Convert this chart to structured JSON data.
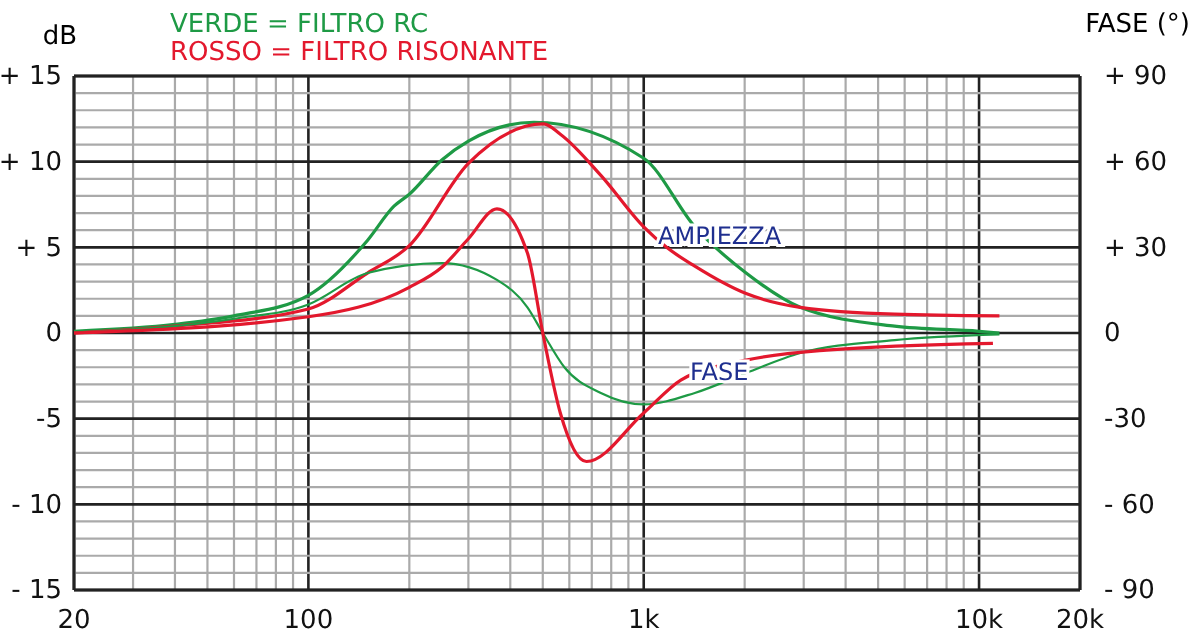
{
  "chart_data": {
    "type": "line",
    "title": "VERDE = FILTRO RC",
    "subtitle": "ROSSO = FILTRO RISONANTE",
    "ylabel": "dB",
    "y2label": "FASE (°)",
    "log": "x",
    "grid": true,
    "marker": "none",
    "line_style": "solid",
    "xlim": [
      20,
      20000
    ],
    "xticks": [
      {
        "value": 20,
        "label": "20"
      },
      {
        "value": 30,
        "label": null
      },
      {
        "value": 40,
        "label": null
      },
      {
        "value": 50,
        "label": null
      },
      {
        "value": 60,
        "label": null
      },
      {
        "value": 70,
        "label": null
      },
      {
        "value": 80,
        "label": null
      },
      {
        "value": 90,
        "label": null
      },
      {
        "value": 100,
        "label": "100"
      },
      {
        "value": 200,
        "label": null
      },
      {
        "value": 300,
        "label": null
      },
      {
        "value": 400,
        "label": null
      },
      {
        "value": 500,
        "label": null
      },
      {
        "value": 600,
        "label": null
      },
      {
        "value": 700,
        "label": null
      },
      {
        "value": 800,
        "label": null
      },
      {
        "value": 900,
        "label": null
      },
      {
        "value": 1000,
        "label": "1k"
      },
      {
        "value": 2000,
        "label": null
      },
      {
        "value": 3000,
        "label": null
      },
      {
        "value": 4000,
        "label": null
      },
      {
        "value": 5000,
        "label": null
      },
      {
        "value": 6000,
        "label": null
      },
      {
        "value": 7000,
        "label": null
      },
      {
        "value": 8000,
        "label": null
      },
      {
        "value": 9000,
        "label": null
      },
      {
        "value": 10000,
        "label": "10k"
      },
      {
        "value": 20000,
        "label": "20k"
      }
    ],
    "ylim": [
      -15,
      15
    ],
    "yticks": [
      {
        "value": -15,
        "label": "- 15"
      },
      {
        "value": -14,
        "label": null
      },
      {
        "value": -13,
        "label": null
      },
      {
        "value": -12,
        "label": null
      },
      {
        "value": -11,
        "label": null
      },
      {
        "value": -10,
        "label": "- 10"
      },
      {
        "value": -9,
        "label": null
      },
      {
        "value": -8,
        "label": null
      },
      {
        "value": -7,
        "label": null
      },
      {
        "value": -6,
        "label": null
      },
      {
        "value": -5,
        "label": "-5"
      },
      {
        "value": -4,
        "label": null
      },
      {
        "value": -3,
        "label": null
      },
      {
        "value": -2,
        "label": null
      },
      {
        "value": -1,
        "label": null
      },
      0,
      {
        "value": 1,
        "label": null
      },
      {
        "value": 2,
        "label": null
      },
      {
        "value": 3,
        "label": null
      },
      {
        "value": 4,
        "label": null
      },
      {
        "value": 5,
        "label": "+ 5"
      },
      {
        "value": 6,
        "label": null
      },
      {
        "value": 7,
        "label": null
      },
      {
        "value": 8,
        "label": null
      },
      {
        "value": 9,
        "label": null
      },
      {
        "value": 10,
        "label": "+ 10"
      },
      {
        "value": 11,
        "label": null
      },
      {
        "value": 12,
        "label": null
      },
      {
        "value": 13,
        "label": null
      },
      {
        "value": 14,
        "label": null
      },
      {
        "value": 15,
        "label": "+ 15"
      }
    ],
    "y2lim": [
      -90,
      90
    ],
    "y2ticks": [
      {
        "value": -90,
        "label": "- 90"
      },
      {
        "value": -60,
        "label": "- 60"
      },
      {
        "value": -30,
        "label": "-30"
      },
      0,
      {
        "value": 30,
        "label": "+ 30"
      },
      {
        "value": 60,
        "label": "+ 60"
      },
      {
        "value": 90,
        "label": "+ 90"
      }
    ],
    "annotations": [
      "AMPIEZZA",
      "FASE"
    ],
    "series": [
      {
        "color": "#1e9a45",
        "x": [
          20,
          40,
          60,
          100,
          150,
          180,
          200,
          250,
          300,
          470,
          1000,
          1420,
          2020,
          2930,
          5600,
          10000,
          11500
        ],
        "values": [
          0.1,
          0.5,
          1.0,
          2.2,
          5.4,
          7.4,
          8.1,
          10.1,
          11.2,
          12.3,
          10.2,
          6.2,
          3.5,
          1.5,
          0.4,
          0.1,
          0
        ]
      },
      {
        "color": "#e3182d",
        "x": [
          20,
          40,
          100,
          150,
          200,
          300,
          503,
          564,
          745,
          1000,
          1170,
          1420,
          2020,
          2930,
          5600,
          11500
        ],
        "values": [
          0,
          0.4,
          1.4,
          3.5,
          5.1,
          9.9,
          12.2,
          11.6,
          9.2,
          6.2,
          5.0,
          3.9,
          2.3,
          1.5,
          1.1,
          1.0
        ]
      },
      {
        "color": "#1e9a45",
        "axis": "y2",
        "x": [
          20,
          60,
          100,
          150,
          250,
          365,
          450,
          500,
          580,
          745,
          1000,
          1420,
          2020,
          2930,
          5600,
          11500
        ],
        "values": [
          0,
          5,
          10,
          21,
          24.5,
          18.6,
          9,
          0,
          -12,
          -21,
          -25,
          -21,
          -14,
          -7,
          -2.5,
          -0.5
        ]
      },
      {
        "color": "#e3182d",
        "axis": "y2",
        "x": [
          20,
          100,
          200,
          250,
          300,
          365,
          450,
          500,
          564,
          675,
          1000,
          1290,
          2020,
          3500,
          11000
        ],
        "values": [
          0,
          5.7,
          16,
          23,
          33,
          43.5,
          28,
          0,
          -28,
          -45,
          -28,
          -16.5,
          -9.5,
          -6,
          -3.6
        ]
      }
    ]
  }
}
